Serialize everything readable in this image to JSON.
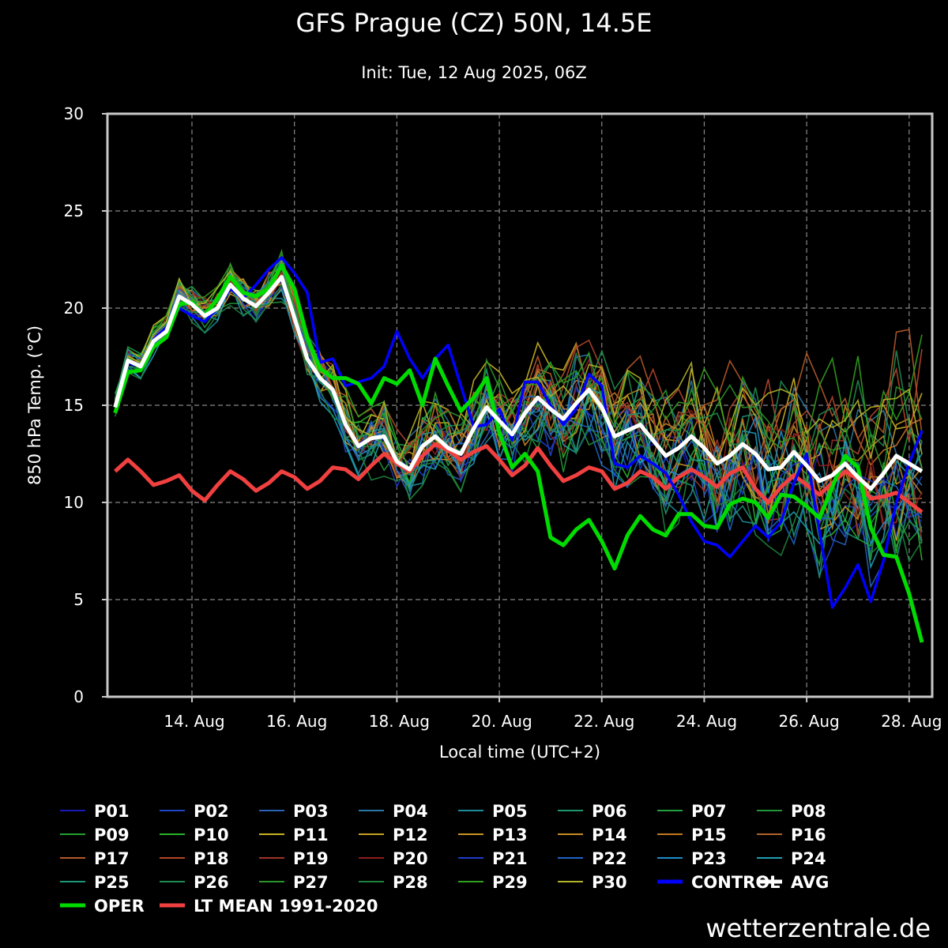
{
  "chart_data": {
    "type": "line",
    "title": "GFS Prague (CZ) 50N, 14.5E",
    "subtitle": "Init: Tue, 12 Aug 2025, 06Z",
    "xlabel": "Local time (UTC+2)",
    "ylabel": "850 hPa Temp. (°C)",
    "ylim": [
      0,
      30
    ],
    "yticks": [
      0,
      5,
      10,
      15,
      20,
      25,
      30
    ],
    "xlim_days": [
      12.35,
      28.45
    ],
    "xtick_labels": [
      "14. Aug",
      "16. Aug",
      "18. Aug",
      "20. Aug",
      "22. Aug",
      "24. Aug",
      "26. Aug",
      "28. Aug"
    ],
    "xtick_days": [
      14,
      16,
      18,
      20,
      22,
      24,
      26,
      28
    ],
    "grid": true,
    "legend_position": "bottom",
    "x": [
      12.5,
      12.75,
      13.0,
      13.25,
      13.5,
      13.75,
      14.0,
      14.25,
      14.5,
      14.75,
      15.0,
      15.25,
      15.5,
      15.75,
      16.0,
      16.25,
      16.5,
      16.75,
      17.0,
      17.25,
      17.5,
      17.75,
      18.0,
      18.25,
      18.5,
      18.75,
      19.0,
      19.25,
      19.5,
      19.75,
      20.0,
      20.25,
      20.5,
      20.75,
      21.0,
      21.25,
      21.5,
      21.75,
      22.0,
      22.25,
      22.5,
      22.75,
      23.0,
      23.25,
      23.5,
      23.75,
      24.0,
      24.25,
      24.5,
      24.75,
      25.0,
      25.25,
      25.5,
      25.75,
      26.0,
      26.25,
      26.5,
      26.75,
      27.0,
      27.25,
      27.5,
      27.75,
      28.0,
      28.25
    ],
    "series": [
      {
        "name": "P01",
        "color": "#1a1ab4"
      },
      {
        "name": "P02",
        "color": "#2046c8"
      },
      {
        "name": "P03",
        "color": "#2a62b8"
      },
      {
        "name": "P04",
        "color": "#2878a8"
      },
      {
        "name": "P05",
        "color": "#1e8c9c"
      },
      {
        "name": "P06",
        "color": "#1e9670"
      },
      {
        "name": "P07",
        "color": "#22a040"
      },
      {
        "name": "P08",
        "color": "#20963a"
      },
      {
        "name": "P09",
        "color": "#24a030"
      },
      {
        "name": "P10",
        "color": "#2ab42a"
      },
      {
        "name": "P11",
        "color": "#c8b424"
      },
      {
        "name": "P12",
        "color": "#c8a024"
      },
      {
        "name": "P13",
        "color": "#c89624"
      },
      {
        "name": "P14",
        "color": "#c88c24"
      },
      {
        "name": "P15",
        "color": "#c87820"
      },
      {
        "name": "P16",
        "color": "#b46428"
      },
      {
        "name": "P17",
        "color": "#b45a28"
      },
      {
        "name": "P18",
        "color": "#b4462a"
      },
      {
        "name": "P19",
        "color": "#a03228"
      },
      {
        "name": "P20",
        "color": "#8c1e1e"
      },
      {
        "name": "P21",
        "color": "#1e3cc8"
      },
      {
        "name": "P22",
        "color": "#1e64c8"
      },
      {
        "name": "P23",
        "color": "#1e8cc8"
      },
      {
        "name": "P24",
        "color": "#1ea0b4"
      },
      {
        "name": "P25",
        "color": "#1e9678"
      },
      {
        "name": "P26",
        "color": "#1e8c50"
      },
      {
        "name": "P27",
        "color": "#289628"
      },
      {
        "name": "P28",
        "color": "#1e823c"
      },
      {
        "name": "P29",
        "color": "#32a01e"
      },
      {
        "name": "P30",
        "color": "#b4b428"
      },
      {
        "name": "CONTROL",
        "color": "#0000ff",
        "values": [
          15.0,
          17.2,
          17.0,
          18.4,
          19.0,
          20.0,
          19.6,
          19.3,
          20.0,
          21.0,
          20.5,
          21.2,
          22.0,
          22.6,
          21.8,
          20.8,
          17.2,
          17.4,
          16.0,
          16.2,
          16.4,
          17.0,
          18.8,
          17.4,
          16.4,
          17.4,
          18.1,
          16.0,
          13.9,
          14.0,
          14.8,
          13.2,
          16.2,
          16.2,
          15.0,
          14.0,
          14.8,
          16.6,
          16.0,
          12.0,
          11.8,
          12.4,
          12.0,
          11.5,
          10.4,
          9.0,
          8.0,
          7.8,
          7.2,
          8.0,
          8.8,
          8.2,
          9.0,
          11.0,
          12.5,
          8.5,
          4.6,
          5.6,
          6.8,
          4.9,
          7.0,
          10.0,
          12.0,
          13.7
        ]
      },
      {
        "name": "AVG",
        "color": "#ffffff",
        "values": [
          14.9,
          17.3,
          17.0,
          18.3,
          18.8,
          20.6,
          20.2,
          19.6,
          20.0,
          21.2,
          20.5,
          20.1,
          20.8,
          21.6,
          19.5,
          17.4,
          16.4,
          15.8,
          14.0,
          12.9,
          13.3,
          13.4,
          12.1,
          11.7,
          12.9,
          13.4,
          12.8,
          12.5,
          13.8,
          14.9,
          14.2,
          13.5,
          14.6,
          15.4,
          14.8,
          14.3,
          15.1,
          15.8,
          14.9,
          13.4,
          13.7,
          14.0,
          13.2,
          12.4,
          12.8,
          13.4,
          12.8,
          12.0,
          12.4,
          13.0,
          12.5,
          11.7,
          11.8,
          12.6,
          11.9,
          11.1,
          11.4,
          12.0,
          11.3,
          10.7,
          11.5,
          12.4,
          12.0,
          11.6
        ]
      },
      {
        "name": "OPER",
        "color": "#00dc00",
        "values": [
          14.6,
          16.7,
          16.8,
          18.0,
          18.5,
          20.2,
          20.3,
          19.6,
          20.5,
          21.6,
          20.8,
          20.6,
          21.0,
          22.2,
          21.0,
          18.5,
          16.9,
          16.4,
          16.4,
          16.1,
          15.1,
          16.4,
          16.1,
          16.8,
          15.0,
          17.4,
          16.0,
          14.7,
          15.4,
          16.4,
          13.6,
          11.8,
          12.5,
          11.6,
          8.2,
          7.8,
          8.6,
          9.1,
          8.0,
          6.6,
          8.3,
          9.3,
          8.6,
          8.3,
          9.4,
          9.4,
          8.8,
          8.7,
          9.9,
          10.2,
          10.0,
          9.2,
          10.4,
          10.3,
          9.8,
          9.2,
          10.8,
          12.4,
          11.8,
          8.7,
          7.3,
          7.2,
          5.3,
          2.8
        ]
      },
      {
        "name": "LT MEAN 1991-2020",
        "color": "#f04040",
        "values": [
          11.6,
          12.2,
          11.6,
          10.9,
          11.1,
          11.4,
          10.6,
          10.1,
          10.9,
          11.6,
          11.2,
          10.6,
          11.0,
          11.6,
          11.3,
          10.7,
          11.1,
          11.8,
          11.7,
          11.2,
          11.9,
          12.5,
          12.0,
          11.6,
          12.4,
          13.0,
          12.7,
          12.2,
          12.6,
          12.9,
          12.2,
          11.4,
          11.9,
          12.8,
          11.9,
          11.1,
          11.4,
          11.8,
          11.6,
          10.7,
          11.0,
          11.6,
          11.3,
          10.7,
          11.3,
          11.7,
          11.3,
          10.8,
          11.5,
          11.8,
          10.7,
          10.0,
          10.8,
          11.4,
          10.9,
          10.4,
          11.0,
          11.6,
          11.2,
          10.2,
          10.3,
          10.5,
          10.0,
          9.5
        ]
      }
    ]
  },
  "watermark": "wetterzentrale.de"
}
